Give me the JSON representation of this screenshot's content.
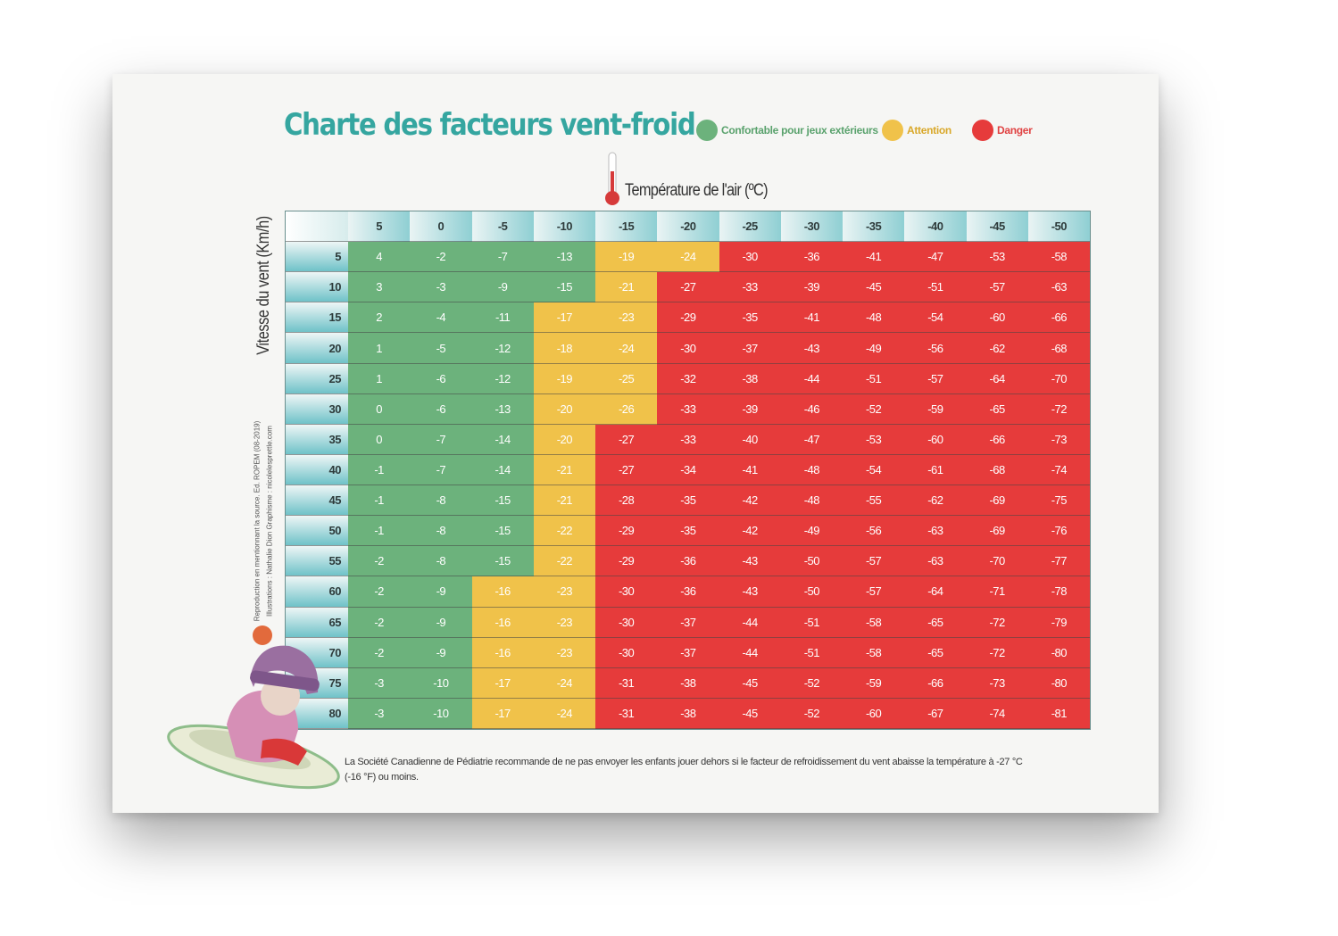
{
  "title": "Charte des facteurs vent-froid",
  "legend": [
    {
      "label": "Confortable pour jeux extérieurs",
      "color": "#6cb27c"
    },
    {
      "label": "Attention",
      "color": "#f0c24a"
    },
    {
      "label": "Danger",
      "color": "#e63b3b"
    }
  ],
  "colors": {
    "green": "#6cb27c",
    "yellow": "#f0c24a",
    "red": "#e63b3b"
  },
  "credits": {
    "line1": "Reproduction en mentionnant la source. Ed. ROPEM (08-2019)",
    "line2": "Illustrations : Nathalie Dion    Graphisme : nicolelesprettle.com"
  },
  "footnote": "La Société Canadienne de Pédiatrie recommande de ne pas envoyer les enfants jouer dehors si le facteur de refroidissement du vent abaisse la température à -27 °C (-16 °F) ou moins.",
  "chart_data": {
    "type": "heatmap",
    "xlabel": "Température de l'air (ºC)",
    "ylabel": "Vitesse du vent (Km/h)",
    "x": [
      5,
      0,
      -5,
      -10,
      -15,
      -20,
      -25,
      -30,
      -35,
      -40,
      -45,
      -50
    ],
    "y": [
      5,
      10,
      15,
      20,
      25,
      30,
      35,
      40,
      45,
      50,
      55,
      60,
      65,
      70,
      75,
      80
    ],
    "values": [
      [
        4,
        -2,
        -7,
        -13,
        -19,
        -24,
        -30,
        -36,
        -41,
        -47,
        -53,
        -58
      ],
      [
        3,
        -3,
        -9,
        -15,
        -21,
        -27,
        -33,
        -39,
        -45,
        -51,
        -57,
        -63
      ],
      [
        2,
        -4,
        -11,
        -17,
        -23,
        -29,
        -35,
        -41,
        -48,
        -54,
        -60,
        -66
      ],
      [
        1,
        -5,
        -12,
        -18,
        -24,
        -30,
        -37,
        -43,
        -49,
        -56,
        -62,
        -68
      ],
      [
        1,
        -6,
        -12,
        -19,
        -25,
        -32,
        -38,
        -44,
        -51,
        -57,
        -64,
        -70
      ],
      [
        0,
        -6,
        -13,
        -20,
        -26,
        -33,
        -39,
        -46,
        -52,
        -59,
        -65,
        -72
      ],
      [
        0,
        -7,
        -14,
        -20,
        -27,
        -33,
        -40,
        -47,
        -53,
        -60,
        -66,
        -73
      ],
      [
        -1,
        -7,
        -14,
        -21,
        -27,
        -34,
        -41,
        -48,
        -54,
        -61,
        -68,
        -74
      ],
      [
        -1,
        -8,
        -15,
        -21,
        -28,
        -35,
        -42,
        -48,
        -55,
        -62,
        -69,
        -75
      ],
      [
        -1,
        -8,
        -15,
        -22,
        -29,
        -35,
        -42,
        -49,
        -56,
        -63,
        -69,
        -76
      ],
      [
        -2,
        -8,
        -15,
        -22,
        -29,
        -36,
        -43,
        -50,
        -57,
        -63,
        -70,
        -77
      ],
      [
        -2,
        -9,
        -16,
        -23,
        -30,
        -36,
        -43,
        -50,
        -57,
        -64,
        -71,
        -78
      ],
      [
        -2,
        -9,
        -16,
        -23,
        -30,
        -37,
        -44,
        -51,
        -58,
        -65,
        -72,
        -79
      ],
      [
        -2,
        -9,
        -16,
        -23,
        -30,
        -37,
        -44,
        -51,
        -58,
        -65,
        -72,
        -80
      ],
      [
        -3,
        -10,
        -17,
        -24,
        -31,
        -38,
        -45,
        -52,
        -59,
        -66,
        -73,
        -80
      ],
      [
        -3,
        -10,
        -17,
        -24,
        -31,
        -38,
        -45,
        -52,
        -60,
        -67,
        -74,
        -81
      ]
    ],
    "zones": [
      [
        "g",
        "g",
        "g",
        "g",
        "y",
        "y",
        "r",
        "r",
        "r",
        "r",
        "r",
        "r"
      ],
      [
        "g",
        "g",
        "g",
        "g",
        "y",
        "r",
        "r",
        "r",
        "r",
        "r",
        "r",
        "r"
      ],
      [
        "g",
        "g",
        "g",
        "y",
        "y",
        "r",
        "r",
        "r",
        "r",
        "r",
        "r",
        "r"
      ],
      [
        "g",
        "g",
        "g",
        "y",
        "y",
        "r",
        "r",
        "r",
        "r",
        "r",
        "r",
        "r"
      ],
      [
        "g",
        "g",
        "g",
        "y",
        "y",
        "r",
        "r",
        "r",
        "r",
        "r",
        "r",
        "r"
      ],
      [
        "g",
        "g",
        "g",
        "y",
        "y",
        "r",
        "r",
        "r",
        "r",
        "r",
        "r",
        "r"
      ],
      [
        "g",
        "g",
        "g",
        "y",
        "r",
        "r",
        "r",
        "r",
        "r",
        "r",
        "r",
        "r"
      ],
      [
        "g",
        "g",
        "g",
        "y",
        "r",
        "r",
        "r",
        "r",
        "r",
        "r",
        "r",
        "r"
      ],
      [
        "g",
        "g",
        "g",
        "y",
        "r",
        "r",
        "r",
        "r",
        "r",
        "r",
        "r",
        "r"
      ],
      [
        "g",
        "g",
        "g",
        "y",
        "r",
        "r",
        "r",
        "r",
        "r",
        "r",
        "r",
        "r"
      ],
      [
        "g",
        "g",
        "g",
        "y",
        "r",
        "r",
        "r",
        "r",
        "r",
        "r",
        "r",
        "r"
      ],
      [
        "g",
        "g",
        "y",
        "y",
        "r",
        "r",
        "r",
        "r",
        "r",
        "r",
        "r",
        "r"
      ],
      [
        "g",
        "g",
        "y",
        "y",
        "r",
        "r",
        "r",
        "r",
        "r",
        "r",
        "r",
        "r"
      ],
      [
        "g",
        "g",
        "y",
        "y",
        "r",
        "r",
        "r",
        "r",
        "r",
        "r",
        "r",
        "r"
      ],
      [
        "g",
        "g",
        "y",
        "y",
        "r",
        "r",
        "r",
        "r",
        "r",
        "r",
        "r",
        "r"
      ],
      [
        "g",
        "g",
        "y",
        "y",
        "r",
        "r",
        "r",
        "r",
        "r",
        "r",
        "r",
        "r"
      ]
    ]
  }
}
